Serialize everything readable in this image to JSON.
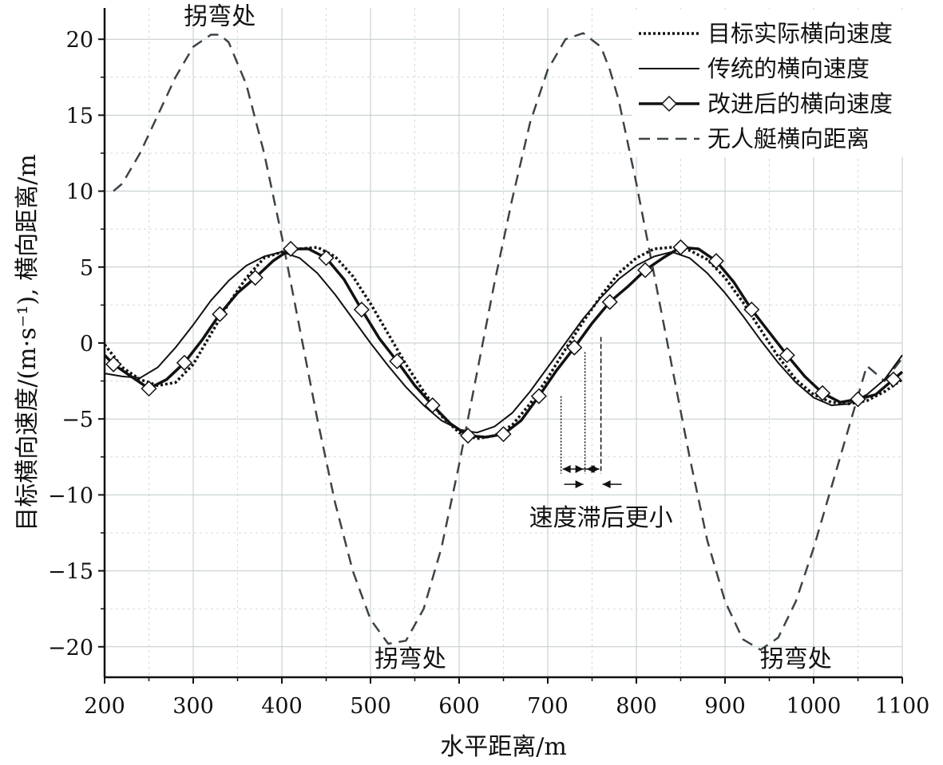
{
  "chart_data": {
    "type": "line",
    "xlabel": "水平距离/m",
    "ylabel": "目标横向速度/(m·s⁻¹), 横向距离/m",
    "xlim": [
      200,
      1100
    ],
    "ylim": [
      -22,
      22
    ],
    "x_ticks": [
      200,
      300,
      400,
      500,
      600,
      700,
      800,
      900,
      1000,
      1100
    ],
    "x_tick_labels": [
      "200",
      "300",
      "400",
      "500",
      "600",
      "700",
      "800",
      "900",
      "1000",
      "1100"
    ],
    "y_ticks": [
      20,
      15,
      10,
      5,
      0,
      -5,
      -10,
      -15,
      -20
    ],
    "y_tick_labels": [
      "20",
      "15",
      "10",
      "5",
      "0",
      "−5",
      "−10",
      "−15",
      "−20"
    ],
    "grid": true,
    "legend_position": "top-right",
    "series": [
      {
        "name": "目标实际横向速度",
        "style": "dotted",
        "color": "#111111",
        "x": [
          200,
          220,
          240,
          260,
          280,
          300,
          320,
          340,
          360,
          380,
          400,
          420,
          440,
          460,
          480,
          500,
          520,
          540,
          560,
          580,
          600,
          620,
          640,
          660,
          680,
          700,
          720,
          740,
          760,
          780,
          800,
          820,
          840,
          860,
          880,
          900,
          920,
          940,
          960,
          980,
          1000,
          1020,
          1040,
          1060,
          1080,
          1100
        ],
        "y": [
          -0.1,
          -1.6,
          -2.4,
          -2.8,
          -2.6,
          -1.4,
          0.6,
          2.6,
          4.3,
          5.6,
          6.0,
          6.2,
          6.3,
          5.7,
          4.4,
          2.6,
          0.6,
          -1.4,
          -3.2,
          -4.8,
          -5.9,
          -6.3,
          -6.1,
          -5.4,
          -4.0,
          -2.3,
          -0.4,
          1.4,
          3.1,
          4.6,
          5.6,
          6.2,
          6.3,
          6.1,
          5.5,
          4.3,
          2.7,
          0.9,
          -0.9,
          -2.4,
          -3.4,
          -3.9,
          -4.0,
          -3.8,
          -3.2,
          -2.4
        ]
      },
      {
        "name": "传统的横向速度",
        "style": "solid",
        "color": "#111111",
        "x": [
          200,
          220,
          240,
          260,
          280,
          300,
          320,
          340,
          360,
          380,
          400,
          420,
          440,
          460,
          480,
          500,
          520,
          540,
          560,
          580,
          600,
          620,
          640,
          660,
          680,
          700,
          720,
          740,
          760,
          780,
          800,
          820,
          840,
          860,
          880,
          900,
          920,
          940,
          960,
          980,
          1000,
          1020,
          1040,
          1060,
          1080,
          1100
        ],
        "y": [
          -2.0,
          -2.2,
          -2.3,
          -1.6,
          -0.3,
          1.2,
          2.8,
          4.1,
          5.1,
          5.7,
          6.0,
          5.6,
          4.6,
          3.2,
          1.6,
          0.0,
          -1.5,
          -2.9,
          -4.1,
          -5.1,
          -5.7,
          -5.9,
          -5.5,
          -4.6,
          -3.2,
          -1.6,
          0.0,
          1.6,
          3.0,
          4.2,
          5.1,
          5.7,
          6.0,
          5.6,
          4.6,
          3.3,
          1.8,
          0.2,
          -1.3,
          -2.6,
          -3.6,
          -4.1,
          -4.0,
          -3.4,
          -2.4,
          -0.8
        ]
      },
      {
        "name": "改进后的横向速度",
        "style": "solid-thick-diamond",
        "color": "#111111",
        "x": [
          200,
          210,
          230,
          250,
          270,
          290,
          310,
          330,
          350,
          370,
          390,
          410,
          430,
          450,
          470,
          490,
          510,
          530,
          550,
          570,
          590,
          610,
          630,
          650,
          670,
          690,
          710,
          730,
          750,
          770,
          790,
          810,
          830,
          850,
          870,
          890,
          910,
          930,
          950,
          970,
          990,
          1010,
          1030,
          1050,
          1070,
          1090,
          1100
        ],
        "y": [
          -0.8,
          -1.4,
          -2.2,
          -3.0,
          -2.4,
          -1.3,
          0.2,
          1.9,
          3.3,
          4.3,
          5.4,
          6.2,
          6.2,
          5.6,
          4.2,
          2.2,
          0.3,
          -1.2,
          -2.8,
          -4.1,
          -5.3,
          -6.1,
          -6.2,
          -6.0,
          -5.1,
          -3.5,
          -1.8,
          -0.3,
          1.3,
          2.7,
          3.7,
          4.8,
          5.6,
          6.3,
          6.2,
          5.4,
          4.0,
          2.2,
          0.7,
          -0.8,
          -2.2,
          -3.3,
          -3.9,
          -3.7,
          -3.4,
          -2.4,
          -1.9
        ]
      },
      {
        "name": "无人艇横向距离",
        "style": "dashed",
        "color": "#3d4347",
        "x": [
          210,
          220,
          240,
          260,
          280,
          300,
          320,
          330,
          340,
          360,
          380,
          400,
          420,
          440,
          460,
          480,
          500,
          520,
          540,
          560,
          580,
          600,
          620,
          640,
          660,
          680,
          700,
          720,
          740,
          760,
          770,
          780,
          800,
          820,
          840,
          860,
          880,
          900,
          920,
          940,
          960,
          980,
          1000,
          1020,
          1040,
          1060,
          1080,
          1100
        ],
        "y": [
          10.0,
          10.5,
          12.5,
          15.0,
          17.5,
          19.5,
          20.3,
          20.3,
          19.8,
          17.0,
          12.5,
          7.0,
          1.0,
          -5.0,
          -10.5,
          -15.0,
          -18.2,
          -19.8,
          -19.6,
          -17.5,
          -13.5,
          -8.0,
          -2.0,
          4.0,
          9.5,
          14.5,
          18.0,
          20.0,
          20.4,
          19.5,
          18.0,
          16.0,
          10.5,
          4.5,
          -1.5,
          -7.5,
          -13.0,
          -17.0,
          -19.5,
          -20.2,
          -19.4,
          -17.0,
          -13.5,
          -9.5,
          -5.5,
          -1.5,
          -2.5,
          -1.0
        ]
      }
    ],
    "annotations": [
      {
        "text": "拐弯处",
        "x": 330,
        "y": 21.5
      },
      {
        "text": "拐弯处",
        "x": 545,
        "y": -20.8
      },
      {
        "text": "拐弯处",
        "x": 980,
        "y": -20.8
      },
      {
        "text": "速度滞后更小",
        "x": 760,
        "y": -11.5
      }
    ],
    "lag_markers": {
      "x": [
        715,
        742,
        760
      ],
      "y_top": [
        -3.5,
        -0.6,
        0.4
      ],
      "y_bottom": [
        -8.6,
        -8.6,
        -8.6
      ]
    }
  }
}
